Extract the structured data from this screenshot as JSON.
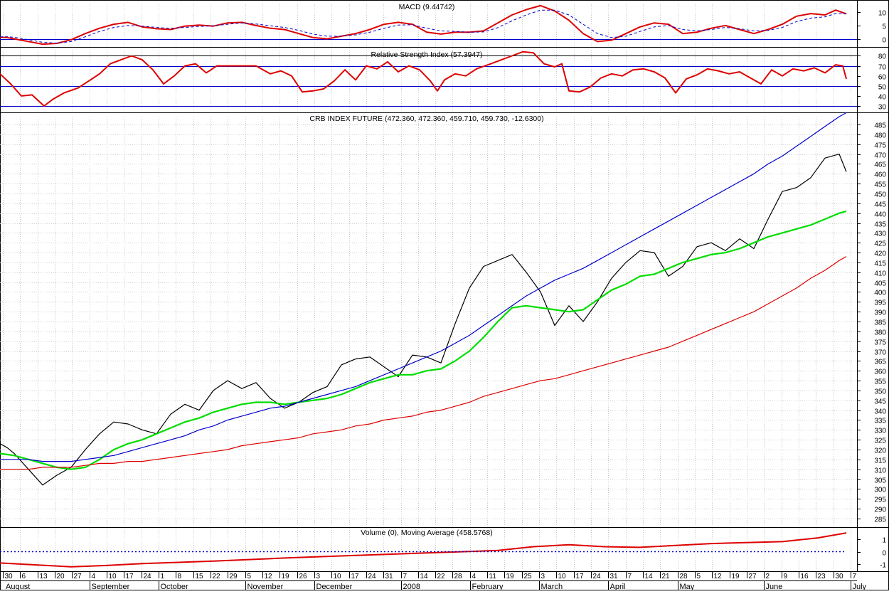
{
  "panels": {
    "macd": {
      "title": "MACD (9.44742)",
      "ticks": [
        0,
        5,
        10
      ],
      "ylim": [
        -2.5,
        13
      ]
    },
    "rsi": {
      "title": "Relative Strength Index (57.3947)",
      "ticks": [
        30,
        40,
        50,
        60,
        70,
        80
      ],
      "ylim": [
        25,
        86
      ],
      "levels": [
        30,
        50,
        70,
        80
      ]
    },
    "price": {
      "title": "CRB INDEX FUTURE (472.360, 472.360, 459.710, 459.730, -12.6300)",
      "ticks": [
        285,
        290,
        295,
        300,
        305,
        310,
        315,
        320,
        325,
        330,
        335,
        340,
        345,
        350,
        355,
        360,
        365,
        370,
        375,
        380,
        385,
        390,
        395,
        400,
        405,
        410,
        415,
        420,
        425,
        430,
        435,
        440,
        445,
        450,
        455,
        460,
        465,
        470,
        475,
        480,
        485
      ],
      "ylim": [
        281,
        489
      ]
    },
    "volume": {
      "title": "Volume (0), Moving Average (458.5768)",
      "ticks": [
        -1,
        0,
        1
      ],
      "ylim": [
        -1.5,
        1.9
      ]
    }
  },
  "x_axis": {
    "day_ticks": [
      "30",
      "6",
      "13",
      "20",
      "27",
      "4",
      "10",
      "17",
      "24",
      "1",
      "8",
      "15",
      "22",
      "29",
      "5",
      "12",
      "19",
      "26",
      "3",
      "10",
      "17",
      "24",
      "31",
      "7",
      "14",
      "22",
      "28",
      "4",
      "11",
      "19",
      "25",
      "3",
      "10",
      "17",
      "24",
      "31",
      "7",
      "14",
      "21",
      "28",
      "5",
      "12",
      "19",
      "27",
      "2",
      "9",
      "16",
      "23",
      "30",
      "7"
    ],
    "month_labels": [
      {
        "label": "August",
        "tick": 0
      },
      {
        "label": "September",
        "tick": 5
      },
      {
        "label": "October",
        "tick": 9
      },
      {
        "label": "November",
        "tick": 14
      },
      {
        "label": "December",
        "tick": 18
      },
      {
        "label": "2008",
        "tick": 23
      },
      {
        "label": "February",
        "tick": 27
      },
      {
        "label": "March",
        "tick": 31
      },
      {
        "label": "April",
        "tick": 35
      },
      {
        "label": "May",
        "tick": 39
      },
      {
        "label": "June",
        "tick": 44
      },
      {
        "label": "July",
        "tick": 49
      }
    ]
  },
  "chart_data": [
    {
      "type": "line",
      "title": "MACD (9.44742)",
      "x": [
        0,
        10,
        20,
        40,
        60,
        80,
        100,
        120,
        140,
        160,
        180,
        200,
        220,
        240,
        260,
        280,
        300,
        320,
        340,
        360,
        380,
        400,
        420,
        440,
        460,
        480,
        500,
        520,
        540,
        560,
        580,
        600,
        620,
        640,
        660,
        680,
        700,
        720,
        740,
        760,
        780,
        800,
        820,
        840,
        860,
        880,
        900,
        920,
        940,
        960,
        980,
        1000,
        1020,
        1040,
        1060,
        1080,
        1100,
        1120,
        1140,
        1160,
        1175,
        1190
      ],
      "series": [
        {
          "color": "#dd0000",
          "values": [
            0.6,
            0.5,
            0.0,
            -1.0,
            -2.0,
            -1.7,
            -0.3,
            2.0,
            4.0,
            5.5,
            6.2,
            4.5,
            3.8,
            3.5,
            4.8,
            5.2,
            4.8,
            6.0,
            6.2,
            5.0,
            4.0,
            3.5,
            2.0,
            0.5,
            0.0,
            1.0,
            2.0,
            3.5,
            5.5,
            6.2,
            5.5,
            2.5,
            1.8,
            2.5,
            2.5,
            3.0,
            6.0,
            9.0,
            11.0,
            12.5,
            10.5,
            7.0,
            2.0,
            -1.0,
            -0.5,
            2.0,
            4.5,
            6.0,
            5.5,
            2.0,
            2.5,
            4.0,
            5.0,
            3.5,
            2.0,
            3.5,
            5.5,
            8.5,
            9.5,
            9.0,
            10.8,
            9.4
          ]
        },
        {
          "color": "#0000cc",
          "values": [
            0.8,
            0.8,
            0.6,
            -0.3,
            -1.3,
            -1.6,
            -1.0,
            0.8,
            2.8,
            4.3,
            5.0,
            4.8,
            4.3,
            4.0,
            4.3,
            4.7,
            4.9,
            5.5,
            6.0,
            5.6,
            4.9,
            4.3,
            3.2,
            1.8,
            1.0,
            1.0,
            1.5,
            2.5,
            4.0,
            5.2,
            5.3,
            4.0,
            3.0,
            2.8,
            2.5,
            2.6,
            4.2,
            6.8,
            9.0,
            10.8,
            10.8,
            9.0,
            5.5,
            2.0,
            0.5,
            1.0,
            2.8,
            4.5,
            5.0,
            3.5,
            3.0,
            3.5,
            4.3,
            3.8,
            3.0,
            3.2,
            4.3,
            6.5,
            7.8,
            8.3,
            9.5,
            9.45
          ]
        }
      ],
      "ylim": [
        -2.5,
        13
      ]
    },
    {
      "type": "line",
      "title": "Relative Strength Index (57.3947)",
      "x": [
        0,
        15,
        30,
        45,
        62,
        75,
        90,
        110,
        125,
        140,
        155,
        170,
        185,
        200,
        215,
        230,
        245,
        260,
        275,
        290,
        305,
        320,
        340,
        360,
        380,
        395,
        410,
        425,
        440,
        455,
        470,
        485,
        500,
        515,
        530,
        545,
        560,
        575,
        590,
        605,
        615,
        625,
        640,
        655,
        670,
        690,
        705,
        720,
        735,
        750,
        765,
        780,
        790,
        800,
        815,
        830,
        845,
        860,
        875,
        890,
        905,
        920,
        935,
        950,
        965,
        980,
        995,
        1010,
        1025,
        1040,
        1055,
        1070,
        1085,
        1100,
        1115,
        1130,
        1145,
        1160,
        1175,
        1185,
        1190
      ],
      "series": [
        {
          "color": "#dd0000",
          "values": [
            62,
            52,
            40,
            41,
            30,
            37,
            43,
            48,
            55,
            62,
            72,
            76,
            80,
            76,
            66,
            52,
            60,
            70,
            72,
            63,
            70,
            70,
            70,
            70,
            62,
            65,
            60,
            44,
            45,
            47,
            55,
            66,
            56,
            70,
            67,
            74,
            64,
            70,
            66,
            55,
            45,
            56,
            62,
            60,
            67,
            72,
            76,
            80,
            84,
            83,
            72,
            69,
            72,
            45,
            44,
            49,
            58,
            62,
            60,
            66,
            67,
            64,
            58,
            43,
            57,
            61,
            67,
            65,
            62,
            64,
            58,
            52,
            66,
            60,
            67,
            65,
            68,
            63,
            71,
            70,
            57
          ]
        }
      ],
      "ylim": [
        25,
        86
      ],
      "levels": [
        30,
        50,
        70,
        80
      ]
    },
    {
      "type": "line",
      "title": "CRB INDEX FUTURE (472.360, 472.360, 459.710, 459.730, -12.6300)",
      "x": [
        0,
        10,
        20,
        40,
        60,
        80,
        100,
        120,
        140,
        160,
        180,
        200,
        220,
        240,
        260,
        280,
        300,
        320,
        340,
        360,
        380,
        400,
        420,
        440,
        460,
        480,
        500,
        520,
        540,
        560,
        580,
        600,
        620,
        640,
        660,
        680,
        700,
        720,
        740,
        760,
        780,
        800,
        820,
        840,
        860,
        880,
        900,
        920,
        940,
        960,
        980,
        1000,
        1020,
        1040,
        1060,
        1080,
        1100,
        1120,
        1140,
        1160,
        1180,
        1190
      ],
      "series": [
        {
          "color": "#000000",
          "values": [
            323,
            321,
            318,
            310,
            302,
            307,
            311,
            320,
            328,
            334,
            333,
            330,
            328,
            338,
            343,
            340,
            350,
            355,
            351,
            354,
            346,
            341,
            344,
            349,
            352,
            363,
            366,
            367,
            362,
            357,
            368,
            367,
            364,
            384,
            402,
            413,
            416,
            419,
            410,
            400,
            383,
            393,
            385,
            395,
            407,
            415,
            421,
            420,
            408,
            413,
            423,
            425,
            421,
            427,
            422,
            437,
            451,
            453,
            458,
            468,
            470,
            461
          ]
        },
        {
          "color": "#00dd00",
          "values": [
            318,
            317.5,
            317,
            315,
            313,
            311,
            310,
            311,
            315,
            320,
            323,
            325,
            328,
            331,
            334,
            336,
            339,
            341,
            343,
            344,
            344,
            343,
            344,
            345,
            346,
            348,
            351,
            354,
            356,
            358,
            358,
            360,
            361,
            365,
            370,
            377,
            385,
            392,
            393,
            392,
            391,
            390,
            391,
            396,
            401,
            404,
            408,
            409,
            412,
            415,
            417,
            419,
            420,
            422,
            425,
            428,
            430,
            432,
            434,
            437,
            440,
            441
          ]
        },
        {
          "color": "#0000cc",
          "values": [
            315,
            315,
            315,
            315,
            314,
            314,
            314,
            315,
            316,
            317,
            319,
            321,
            323,
            325,
            327,
            330,
            332,
            335,
            337,
            339,
            341,
            342,
            344,
            346,
            348,
            350,
            352,
            355,
            358,
            361,
            364,
            367,
            370,
            374,
            378,
            383,
            388,
            393,
            398,
            402,
            406,
            409,
            412,
            416,
            420,
            424,
            428,
            432,
            436,
            440,
            444,
            448,
            452,
            456,
            460,
            465,
            469,
            474,
            479,
            484,
            489,
            491
          ]
        },
        {
          "color": "#dd0000",
          "values": [
            310,
            310,
            310,
            310,
            311,
            311,
            311,
            312,
            313,
            313,
            314,
            314,
            315,
            316,
            317,
            318,
            319,
            320,
            322,
            323,
            324,
            325,
            326,
            328,
            329,
            330,
            332,
            333,
            335,
            336,
            337,
            339,
            340,
            342,
            344,
            347,
            349,
            351,
            353,
            355,
            356,
            358,
            360,
            362,
            364,
            366,
            368,
            370,
            372,
            375,
            378,
            381,
            384,
            387,
            390,
            394,
            398,
            402,
            407,
            411,
            416,
            418
          ]
        }
      ],
      "ylim": [
        281,
        489
      ]
    },
    {
      "type": "line",
      "title": "Volume (0), Moving Average (458.5768)",
      "x": [
        0,
        100,
        150,
        200,
        300,
        400,
        500,
        600,
        700,
        750,
        800,
        850,
        900,
        950,
        1000,
        1100,
        1150,
        1190
      ],
      "series": [
        {
          "color": "#dd0000",
          "values": [
            -0.9,
            -1.2,
            -1.1,
            -0.95,
            -0.75,
            -0.5,
            -0.3,
            -0.1,
            0.1,
            0.4,
            0.55,
            0.4,
            0.35,
            0.5,
            0.65,
            0.8,
            1.1,
            1.5
          ]
        },
        {
          "color": "#0000cc",
          "values": [
            0,
            0,
            0,
            0,
            0,
            0,
            0,
            0,
            0,
            0,
            0,
            0,
            0,
            0,
            0,
            0,
            0,
            0
          ]
        }
      ],
      "ylim": [
        -1.5,
        1.9
      ]
    }
  ]
}
